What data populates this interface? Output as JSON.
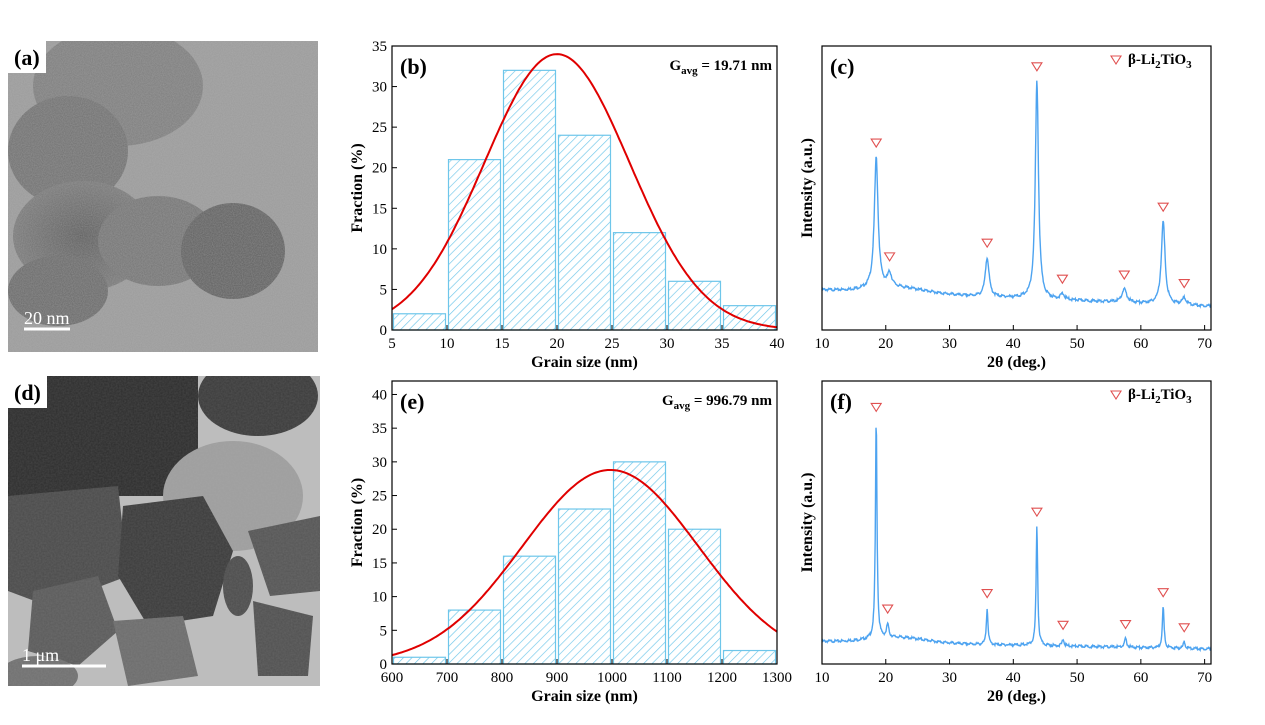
{
  "panels": {
    "a": {
      "label": "(a)",
      "scale_bar": "20 nm"
    },
    "d": {
      "label": "(d)",
      "scale_bar": "1 μm"
    }
  },
  "chart_data": [
    {
      "id": "b",
      "panel_label": "(b)",
      "type": "bar",
      "subtype": "histogram_with_normal_fit",
      "bins": [
        [
          5,
          10
        ],
        [
          10,
          15
        ],
        [
          15,
          20
        ],
        [
          20,
          25
        ],
        [
          25,
          30
        ],
        [
          30,
          35
        ],
        [
          35,
          40
        ]
      ],
      "values": [
        2,
        21,
        32,
        24,
        12,
        6,
        3
      ],
      "fit": {
        "type": "gaussian",
        "mean": 20,
        "sigma": 6.6,
        "peak": 34
      },
      "annotation": {
        "main": "G",
        "sub": "avg",
        "value": " = 19.71 nm"
      },
      "xlabel": "Grain size (nm)",
      "ylabel": "Fraction (%)",
      "xlim": [
        5,
        40
      ],
      "ylim": [
        0,
        35
      ],
      "xticks": [
        5,
        10,
        15,
        20,
        25,
        30,
        35,
        40
      ],
      "yticks": [
        0,
        5,
        10,
        15,
        20,
        25,
        30,
        35
      ],
      "bar_color": "#6EC6EA",
      "fit_color": "#E00000"
    },
    {
      "id": "c",
      "panel_label": "(c)",
      "type": "line",
      "subtype": "xrd_pattern",
      "xlabel": "2θ (deg.)",
      "ylabel": "Intensity (a.u.)",
      "xlim": [
        10,
        71
      ],
      "xticks": [
        10,
        20,
        30,
        40,
        50,
        60,
        70
      ],
      "baseline": {
        "start": 0.12,
        "end": 0.045
      },
      "peaks": [
        {
          "x": 18.5,
          "h": 0.6,
          "w": 0.35
        },
        {
          "x": 20.6,
          "h": 0.06,
          "w": 0.4
        },
        {
          "x": 35.9,
          "h": 0.18,
          "w": 0.35
        },
        {
          "x": 43.7,
          "h": 1.0,
          "w": 0.3
        },
        {
          "x": 47.7,
          "h": 0.025,
          "w": 0.35
        },
        {
          "x": 57.4,
          "h": 0.06,
          "w": 0.45
        },
        {
          "x": 63.5,
          "h": 0.38,
          "w": 0.35
        },
        {
          "x": 66.8,
          "h": 0.03,
          "w": 0.4
        }
      ],
      "markers": [
        18.5,
        20.6,
        35.9,
        43.7,
        47.7,
        57.4,
        63.5,
        66.8
      ],
      "legend": {
        "main": "β-Li",
        "sub1": "2",
        "mid": "TiO",
        "sub2": "3"
      },
      "legend_position": "top-right",
      "line_color": "#4DA3F0",
      "marker_color": "#E05050"
    },
    {
      "id": "e",
      "panel_label": "(e)",
      "type": "bar",
      "subtype": "histogram_with_normal_fit",
      "bins": [
        [
          600,
          700
        ],
        [
          700,
          800
        ],
        [
          800,
          900
        ],
        [
          900,
          1000
        ],
        [
          1000,
          1100
        ],
        [
          1100,
          1200
        ],
        [
          1200,
          1300
        ]
      ],
      "values": [
        1,
        8,
        16,
        23,
        30,
        20,
        2
      ],
      "fit": {
        "type": "gaussian",
        "mean": 997,
        "sigma": 160,
        "peak": 28.8
      },
      "annotation": {
        "main": "G",
        "sub": "avg",
        "value": " = 996.79 nm"
      },
      "xlabel": "Grain size (nm)",
      "ylabel": "Fraction (%)",
      "xlim": [
        600,
        1300
      ],
      "ylim": [
        0,
        42
      ],
      "xticks": [
        600,
        700,
        800,
        900,
        1000,
        1100,
        1200,
        1300
      ],
      "yticks": [
        0,
        5,
        10,
        15,
        20,
        25,
        30,
        35,
        40
      ],
      "bar_color": "#6EC6EA",
      "fit_color": "#E00000"
    },
    {
      "id": "f",
      "panel_label": "(f)",
      "type": "line",
      "subtype": "xrd_pattern",
      "xlabel": "2θ (deg.)",
      "ylabel": "Intensity (a.u.)",
      "xlim": [
        10,
        71
      ],
      "xticks": [
        10,
        20,
        30,
        40,
        50,
        60,
        70
      ],
      "baseline": {
        "start": 0.04,
        "end": 0.005
      },
      "peaks": [
        {
          "x": 18.5,
          "h": 1.0,
          "w": 0.15
        },
        {
          "x": 20.3,
          "h": 0.06,
          "w": 0.2
        },
        {
          "x": 35.9,
          "h": 0.17,
          "w": 0.15
        },
        {
          "x": 43.7,
          "h": 0.55,
          "w": 0.15
        },
        {
          "x": 47.8,
          "h": 0.03,
          "w": 0.18
        },
        {
          "x": 57.6,
          "h": 0.04,
          "w": 0.2
        },
        {
          "x": 63.5,
          "h": 0.19,
          "w": 0.16
        },
        {
          "x": 66.8,
          "h": 0.03,
          "w": 0.18
        }
      ],
      "markers": [
        18.5,
        20.3,
        35.9,
        43.7,
        47.8,
        57.6,
        63.5,
        66.8
      ],
      "legend": {
        "main": "β-Li",
        "sub1": "2",
        "mid": "TiO",
        "sub2": "3"
      },
      "legend_position": "top-right",
      "line_color": "#4DA3F0",
      "marker_color": "#E05050"
    }
  ]
}
